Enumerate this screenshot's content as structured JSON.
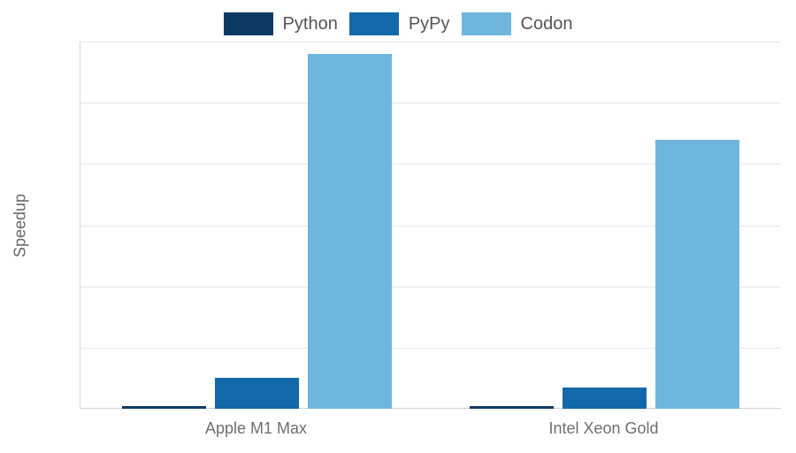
{
  "chart_data": {
    "type": "bar",
    "title": "",
    "xlabel": "",
    "ylabel": "Speedup",
    "categories": [
      "Apple M1 Max",
      "Intel Xeon Gold"
    ],
    "series": [
      {
        "name": "Python",
        "color": "#0d3a63",
        "values": [
          1,
          1
        ]
      },
      {
        "name": "PyPy",
        "color": "#1268a9",
        "values": [
          10,
          7
        ]
      },
      {
        "name": "Codon",
        "color": "#6eb6de",
        "values": [
          116,
          88
        ]
      }
    ],
    "ylim": [
      0,
      120
    ],
    "yticks": [
      0,
      20,
      40,
      60,
      80,
      100,
      120
    ],
    "grid": true,
    "legend_position": "top-center"
  },
  "colors": {
    "background": "#ffffff",
    "gridline": "#e6e6e6",
    "axis_line": "#d2d2d2",
    "tick_text": "#666666",
    "legend_text": "#555555",
    "category_text": "#6e6e6e"
  }
}
